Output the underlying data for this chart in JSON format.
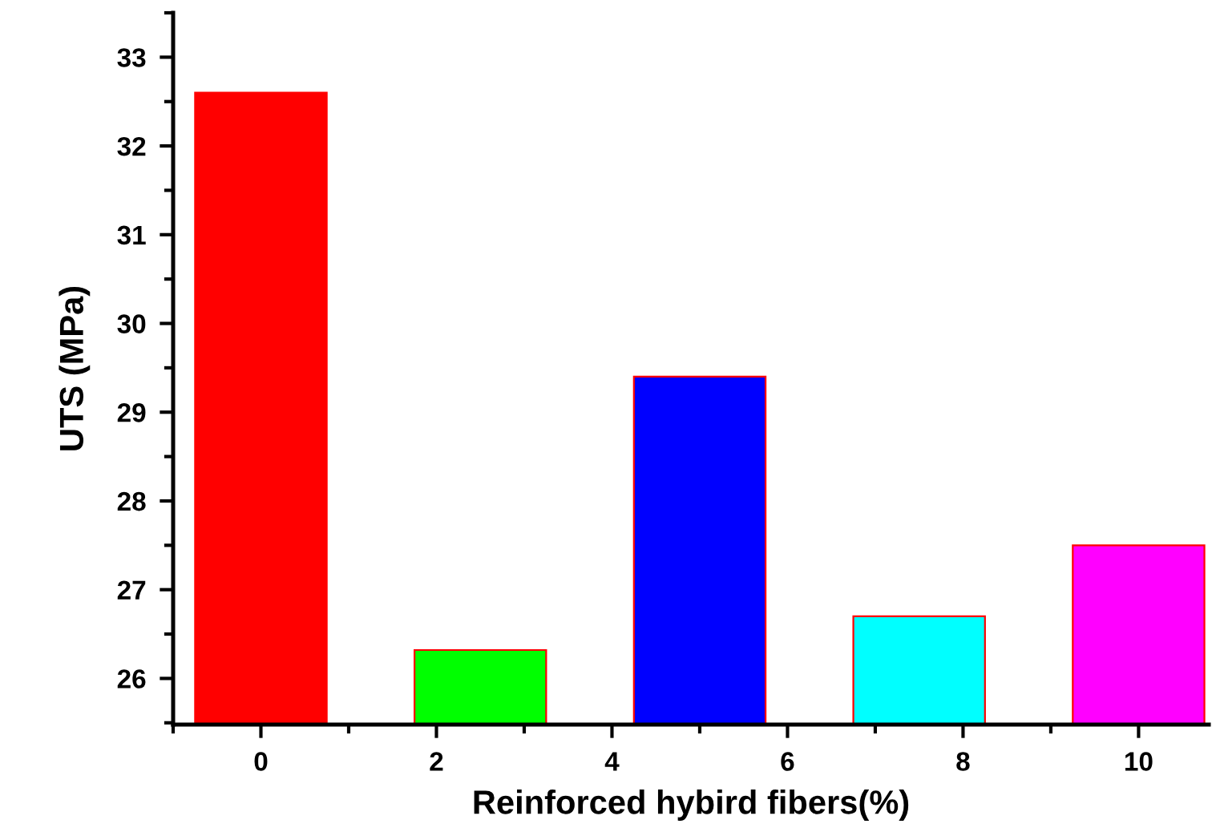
{
  "chart_data": {
    "type": "bar",
    "xlabel": "Reinforced hybird fibers(%)",
    "ylabel": "UTS (MPa)",
    "x": [
      0,
      2.5,
      5,
      7.5,
      10
    ],
    "values": [
      32.6,
      26.32,
      29.4,
      26.7,
      27.5
    ],
    "colors": [
      "#ff0000",
      "#00ff00",
      "#0000ff",
      "#00ffff",
      "#ff00ff"
    ],
    "xlim": [
      -1,
      10.8
    ],
    "xticks": [
      0,
      2,
      4,
      6,
      8,
      10
    ],
    "ylim": [
      25.48,
      33.5
    ],
    "yticks": [
      26,
      27,
      28,
      29,
      30,
      31,
      32,
      33
    ],
    "grid": false,
    "legend": false
  }
}
